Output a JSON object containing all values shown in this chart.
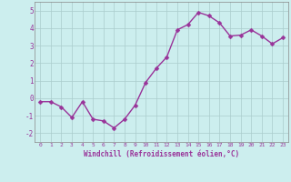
{
  "x": [
    0,
    1,
    2,
    3,
    4,
    5,
    6,
    7,
    8,
    9,
    10,
    11,
    12,
    13,
    14,
    15,
    16,
    17,
    18,
    19,
    20,
    21,
    22,
    23
  ],
  "y": [
    -0.2,
    -0.2,
    -0.5,
    -1.1,
    -0.2,
    -1.2,
    -1.3,
    -1.7,
    -1.2,
    -0.4,
    0.9,
    1.7,
    2.35,
    3.9,
    4.2,
    4.9,
    4.7,
    4.3,
    3.55,
    3.6,
    3.9,
    3.55,
    3.1,
    3.45
  ],
  "line_color": "#993399",
  "marker_color": "#993399",
  "bg_color": "#cceeee",
  "grid_color": "#aacccc",
  "xlabel": "Windchill (Refroidissement éolien,°C)",
  "xlabel_color": "#993399",
  "tick_color": "#993399",
  "ylim": [
    -2.5,
    5.5
  ],
  "xlim": [
    -0.5,
    23.5
  ],
  "yticks": [
    -2,
    -1,
    0,
    1,
    2,
    3,
    4,
    5
  ],
  "xticks": [
    0,
    1,
    2,
    3,
    4,
    5,
    6,
    7,
    8,
    9,
    10,
    11,
    12,
    13,
    14,
    15,
    16,
    17,
    18,
    19,
    20,
    21,
    22,
    23
  ],
  "xtick_labels": [
    "0",
    "1",
    "2",
    "3",
    "4",
    "5",
    "6",
    "7",
    "8",
    "9",
    "10",
    "11",
    "12",
    "13",
    "14",
    "15",
    "16",
    "17",
    "18",
    "19",
    "20",
    "21",
    "22",
    "23"
  ],
  "line_width": 1.0,
  "marker_size": 2.5
}
